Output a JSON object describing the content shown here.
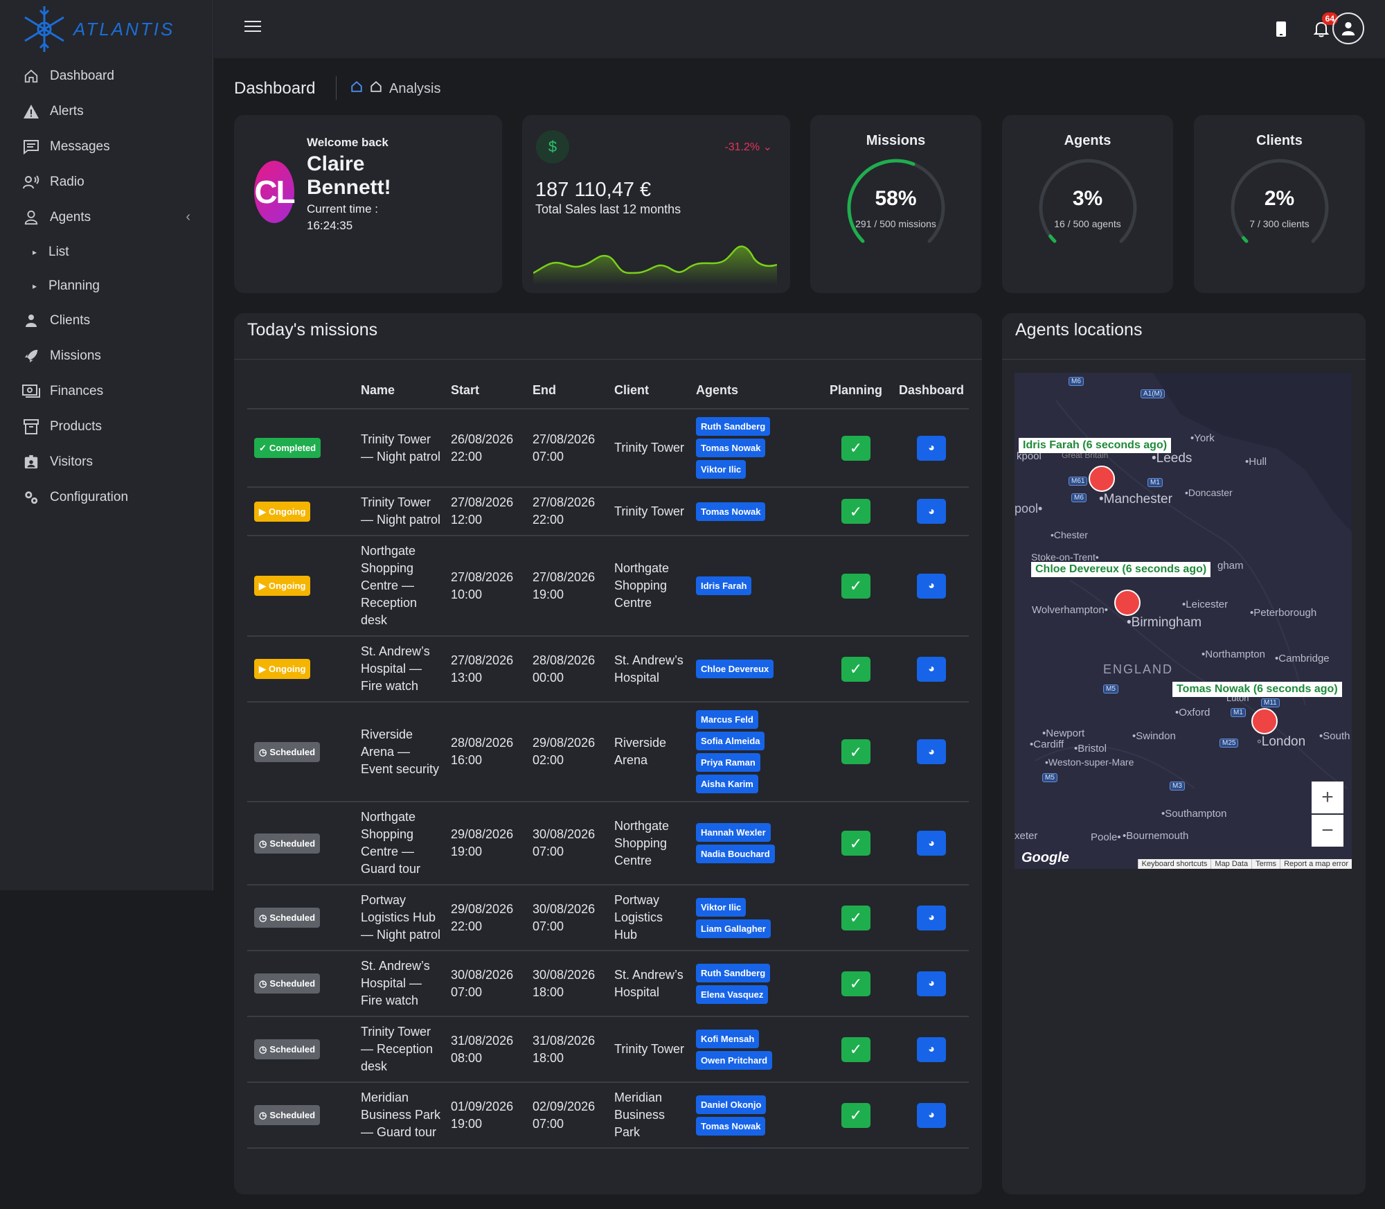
{
  "app": {
    "logo_text": "ATLANTIS"
  },
  "sidebar": {
    "items": [
      {
        "label": "Dashboard",
        "icon": "home-icon"
      },
      {
        "label": "Alerts",
        "icon": "warning-icon"
      },
      {
        "label": "Messages",
        "icon": "message-icon"
      },
      {
        "label": "Radio",
        "icon": "radio-icon"
      },
      {
        "label": "Agents",
        "icon": "user-icon"
      },
      {
        "label": "List",
        "icon": "caret-right-icon"
      },
      {
        "label": "Planning",
        "icon": "caret-right-icon"
      },
      {
        "label": "Clients",
        "icon": "client-icon"
      },
      {
        "label": "Missions",
        "icon": "rocket-icon"
      },
      {
        "label": "Finances",
        "icon": "money-icon"
      },
      {
        "label": "Products",
        "icon": "archive-icon"
      },
      {
        "label": "Visitors",
        "icon": "visitor-icon"
      },
      {
        "label": "Configuration",
        "icon": "cogs-icon"
      }
    ]
  },
  "topbar": {
    "notifications_count": "64"
  },
  "header": {
    "title": "Dashboard",
    "breadcrumb": "Analysis"
  },
  "welcome": {
    "greeting": "Welcome back",
    "name": "Claire Bennett!",
    "initials": "CL",
    "time_label": "Current time :",
    "time": "16:24:35"
  },
  "sales": {
    "change": "-31.2%",
    "value": "187 110,47 €",
    "label": "Total Sales last 12 months",
    "colors": {
      "line": "#7bd11a",
      "change": "#e8325b"
    }
  },
  "gauges": [
    {
      "title": "Missions",
      "pct": "58%",
      "fraction": 0.58,
      "sub": "291 / 500 missions"
    },
    {
      "title": "Agents",
      "pct": "3%",
      "fraction": 0.03,
      "sub": "16 / 500 agents"
    },
    {
      "title": "Clients",
      "pct": "2%",
      "fraction": 0.02,
      "sub": "7 / 300 clients"
    }
  ],
  "missions": {
    "title": "Today's missions",
    "columns": [
      "Name",
      "Start",
      "End",
      "Client",
      "Agents",
      "Planning",
      "Dashboard"
    ],
    "rows": [
      {
        "status": "Completed",
        "name": "Trinity Tower — Night patrol",
        "start": "26/08/2026 22:00",
        "end": "27/08/2026 07:00",
        "client": "Trinity Tower",
        "agents": [
          "Ruth Sandberg",
          "Tomas Nowak",
          "Viktor Ilic"
        ]
      },
      {
        "status": "Ongoing",
        "name": "Trinity Tower — Night patrol",
        "start": "27/08/2026 12:00",
        "end": "27/08/2026 22:00",
        "client": "Trinity Tower",
        "agents": [
          "Tomas Nowak"
        ]
      },
      {
        "status": "Ongoing",
        "name": "Northgate Shopping Centre — Reception desk",
        "start": "27/08/2026 10:00",
        "end": "27/08/2026 19:00",
        "client": "Northgate Shopping Centre",
        "agents": [
          "Idris Farah"
        ]
      },
      {
        "status": "Ongoing",
        "name": "St. Andrew’s Hospital — Fire watch",
        "start": "27/08/2026 13:00",
        "end": "28/08/2026 00:00",
        "client": "St. Andrew’s Hospital",
        "agents": [
          "Chloe Devereux"
        ]
      },
      {
        "status": "Scheduled",
        "name": "Riverside Arena — Event security",
        "start": "28/08/2026 16:00",
        "end": "29/08/2026 02:00",
        "client": "Riverside Arena",
        "agents": [
          "Marcus Feld",
          "Sofia Almeida",
          "Priya Raman",
          "Aisha Karim"
        ]
      },
      {
        "status": "Scheduled",
        "name": "Northgate Shopping Centre — Guard tour",
        "start": "29/08/2026 19:00",
        "end": "30/08/2026 07:00",
        "client": "Northgate Shopping Centre",
        "agents": [
          "Hannah Wexler",
          "Nadia Bouchard"
        ]
      },
      {
        "status": "Scheduled",
        "name": "Portway Logistics Hub — Night patrol",
        "start": "29/08/2026 22:00",
        "end": "30/08/2026 07:00",
        "client": "Portway Logistics Hub",
        "agents": [
          "Viktor Ilic",
          "Liam Gallagher"
        ]
      },
      {
        "status": "Scheduled",
        "name": "St. Andrew’s Hospital — Fire watch",
        "start": "30/08/2026 07:00",
        "end": "30/08/2026 18:00",
        "client": "St. Andrew’s Hospital",
        "agents": [
          "Ruth Sandberg",
          "Elena Vasquez"
        ]
      },
      {
        "status": "Scheduled",
        "name": "Trinity Tower — Reception desk",
        "start": "31/08/2026 08:00",
        "end": "31/08/2026 18:00",
        "client": "Trinity Tower",
        "agents": [
          "Kofi Mensah",
          "Owen Pritchard"
        ]
      },
      {
        "status": "Scheduled",
        "name": "Meridian Business Park — Guard tour",
        "start": "01/09/2026 19:00",
        "end": "02/09/2026 07:00",
        "client": "Meridian Business Park",
        "agents": [
          "Daniel Okonjo",
          "Tomas Nowak"
        ]
      }
    ]
  },
  "locations": {
    "title": "Agents locations",
    "tooltips": [
      "Idris Farah (6 seconds ago)",
      "Chloe Devereux (6 seconds ago)",
      "Tomas Nowak (6 seconds ago)"
    ],
    "places": {
      "york": "York",
      "leeds": "Leeds",
      "hull": "Hull",
      "manchester": "Manchester",
      "doncaster": "Doncaster",
      "chester": "Chester",
      "stoke": "Stoke-on-Trent",
      "leicester": "Leicester",
      "peterborough": "Peterborough",
      "wolverhampton": "Wolverhampton",
      "birmingham": "Birmingham",
      "england": "ENGLAND",
      "northampton": "Northampton",
      "cambridge": "Cambridge",
      "oxford": "Oxford",
      "newport": "Newport",
      "cardiff": "Cardiff",
      "bristol": "Bristol",
      "swindon": "Swindon",
      "london": "London",
      "weston": "Weston-super-Mare",
      "southampton": "Southampton",
      "poole": "Poole",
      "bournemouth": "Bournemouth",
      "exeter": "xeter",
      "liverpool": "pool",
      "blackpool": "kpool",
      "great_britain": "Great Britain",
      "luton": "Luton",
      "south": "South",
      "ham": "gham"
    },
    "roads": [
      "M6",
      "A1(M)",
      "M61",
      "M1",
      "M6",
      "M5",
      "M1",
      "M11",
      "M25",
      "M5",
      "M3"
    ],
    "footer": [
      "Keyboard shortcuts",
      "Map Data",
      "Terms",
      "Report a map error"
    ],
    "google": "Google"
  }
}
